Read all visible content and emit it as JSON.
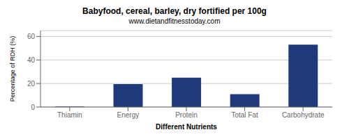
{
  "chart_data": {
    "type": "bar",
    "title": "Babyfood, cereal, barley, dry fortified per 100g",
    "subtitle": "www.dietandfitnesstoday.com",
    "categories": [
      "Thiamin",
      "Energy",
      "Protein",
      "Total Fat",
      "Carbohydrate"
    ],
    "values": [
      0.4,
      19.5,
      25.0,
      11.0,
      53.0
    ],
    "color": "#1e3a7a",
    "xlabel": "Different Nutrients",
    "ylabel": "Percentage of RDH (%)",
    "ylim": [
      0,
      65
    ],
    "yticks": [
      0,
      20,
      40,
      60
    ],
    "grid": true
  }
}
